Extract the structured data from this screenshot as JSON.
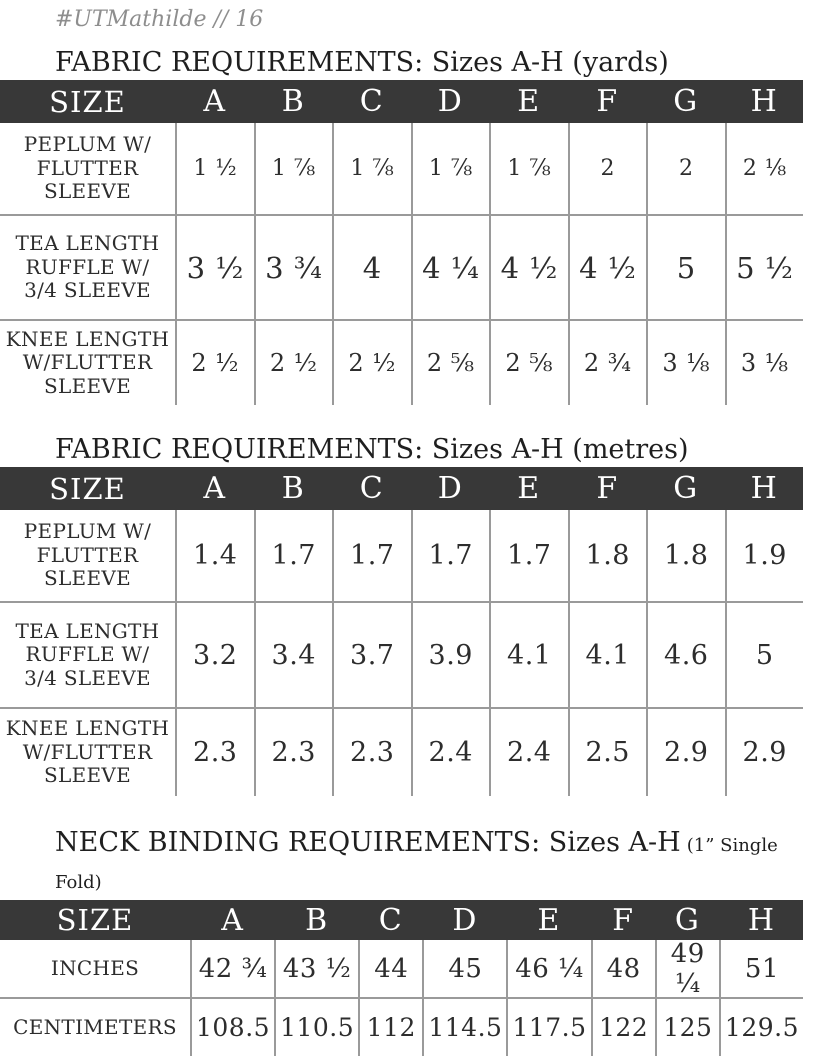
{
  "page": {
    "tag": "#UTMathilde // 16"
  },
  "colors": {
    "header_bar": "#383838",
    "header_text": "#ffffff",
    "grid_line": "#9a9a9a",
    "body_text": "#2d2d2d",
    "tag_text": "#8e8e8e"
  },
  "tables": [
    {
      "title": "FABRIC REQUIREMENTS: Sizes A-H (yards)",
      "header": [
        "SIZE",
        "A",
        "B",
        "C",
        "D",
        "E",
        "F",
        "G",
        "H"
      ],
      "rows": [
        {
          "label": "PEPLUM W/\nFLUTTER\nSLEEVE",
          "values": [
            "1 ½",
            "1 ⅞",
            "1 ⅞",
            "1 ⅞",
            "1 ⅞",
            "2",
            "2",
            "2 ⅛"
          ]
        },
        {
          "label": "TEA LENGTH\nRUFFLE W/\n3/4 SLEEVE",
          "values": [
            "3 ½",
            "3 ¾",
            "4",
            "4 ¼",
            "4 ½",
            "4 ½",
            "5",
            "5 ½"
          ]
        },
        {
          "label": "KNEE LENGTH\nW/FLUTTER\nSLEEVE",
          "values": [
            "2 ½",
            "2 ½",
            "2 ½",
            "2 ⅝",
            "2 ⅝",
            "2 ¾",
            "3 ⅛",
            "3 ⅛"
          ]
        }
      ]
    },
    {
      "title": "FABRIC REQUIREMENTS: Sizes A-H (metres)",
      "header": [
        "SIZE",
        "A",
        "B",
        "C",
        "D",
        "E",
        "F",
        "G",
        "H"
      ],
      "rows": [
        {
          "label": "PEPLUM W/\nFLUTTER\nSLEEVE",
          "values": [
            "1.4",
            "1.7",
            "1.7",
            "1.7",
            "1.7",
            "1.8",
            "1.8",
            "1.9"
          ]
        },
        {
          "label": "TEA LENGTH\nRUFFLE W/\n3/4 SLEEVE",
          "values": [
            "3.2",
            "3.4",
            "3.7",
            "3.9",
            "4.1",
            "4.1",
            "4.6",
            "5"
          ]
        },
        {
          "label": "KNEE LENGTH\nW/FLUTTER\nSLEEVE",
          "values": [
            "2.3",
            "2.3",
            "2.3",
            "2.4",
            "2.4",
            "2.5",
            "2.9",
            "2.9"
          ]
        }
      ]
    },
    {
      "title": "NECK BINDING REQUIREMENTS: Sizes A-H",
      "title_small": "(1” Single Fold)",
      "header": [
        "SIZE",
        "A",
        "B",
        "C",
        "D",
        "E",
        "F",
        "G",
        "H"
      ],
      "rows": [
        {
          "label": "INCHES",
          "values": [
            "42 ¾",
            "43 ½",
            "44",
            "45",
            "46 ¼",
            "48",
            "49 ¼",
            "51"
          ]
        },
        {
          "label": "CENTIMETERS",
          "values": [
            "108.5",
            "110.5",
            "112",
            "114.5",
            "117.5",
            "122",
            "125",
            "129.5"
          ]
        }
      ]
    }
  ]
}
